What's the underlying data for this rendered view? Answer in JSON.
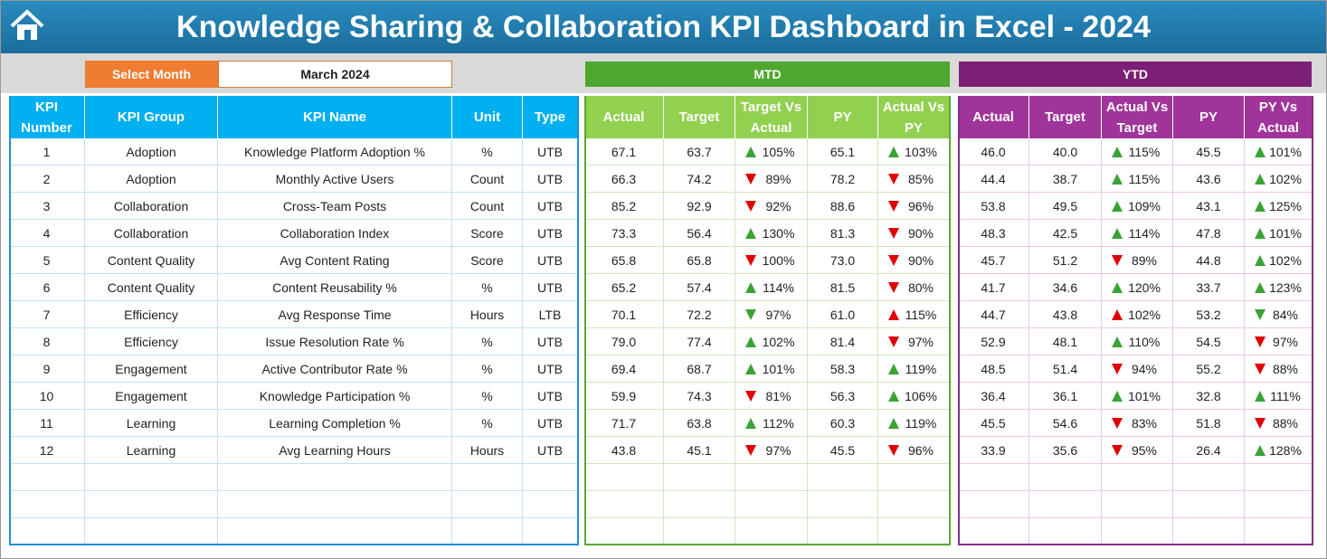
{
  "header": {
    "title": "Knowledge Sharing & Collaboration KPI Dashboard in Excel - 2024"
  },
  "selector": {
    "label": "Select Month",
    "value": "March 2024"
  },
  "sections": {
    "mtd": "MTD",
    "ytd": "YTD"
  },
  "columns": {
    "kpi": [
      "KPI Number",
      "KPI Group",
      "KPI Name",
      "Unit",
      "Type"
    ],
    "mtd": [
      "Actual",
      "Target",
      "Target Vs Actual",
      "PY",
      "Actual Vs PY"
    ],
    "ytd": [
      "Actual",
      "Target",
      "Actual Vs Target",
      "PY",
      "PY Vs Actual"
    ]
  },
  "rows": [
    {
      "kpi": [
        "1",
        "Adoption",
        "Knowledge Platform Adoption %",
        "%",
        "UTB"
      ],
      "mtd": [
        "67.1",
        "63.7",
        "105%",
        "65.1",
        "103%"
      ],
      "mtd_arrows": [
        "up-green",
        "up-green"
      ],
      "ytd": [
        "46.0",
        "40.0",
        "115%",
        "45.5",
        "101%"
      ],
      "ytd_arrows": [
        "up-green",
        "up-green"
      ]
    },
    {
      "kpi": [
        "2",
        "Adoption",
        "Monthly Active Users",
        "Count",
        "UTB"
      ],
      "mtd": [
        "66.3",
        "74.2",
        "89%",
        "78.2",
        "85%"
      ],
      "mtd_arrows": [
        "down-red",
        "down-red"
      ],
      "ytd": [
        "44.4",
        "38.7",
        "115%",
        "43.6",
        "102%"
      ],
      "ytd_arrows": [
        "up-green",
        "up-green"
      ]
    },
    {
      "kpi": [
        "3",
        "Collaboration",
        "Cross-Team Posts",
        "Count",
        "UTB"
      ],
      "mtd": [
        "85.2",
        "92.9",
        "92%",
        "88.6",
        "96%"
      ],
      "mtd_arrows": [
        "down-red",
        "down-red"
      ],
      "ytd": [
        "53.8",
        "49.5",
        "109%",
        "43.1",
        "125%"
      ],
      "ytd_arrows": [
        "up-green",
        "up-green"
      ]
    },
    {
      "kpi": [
        "4",
        "Collaboration",
        "Collaboration Index",
        "Score",
        "UTB"
      ],
      "mtd": [
        "73.3",
        "56.4",
        "130%",
        "81.3",
        "90%"
      ],
      "mtd_arrows": [
        "up-green",
        "down-red"
      ],
      "ytd": [
        "48.3",
        "42.5",
        "114%",
        "47.8",
        "101%"
      ],
      "ytd_arrows": [
        "up-green",
        "up-green"
      ]
    },
    {
      "kpi": [
        "5",
        "Content Quality",
        "Avg Content Rating",
        "Score",
        "UTB"
      ],
      "mtd": [
        "65.8",
        "65.8",
        "100%",
        "73.0",
        "90%"
      ],
      "mtd_arrows": [
        "down-red",
        "down-red"
      ],
      "ytd": [
        "45.7",
        "51.2",
        "89%",
        "44.8",
        "102%"
      ],
      "ytd_arrows": [
        "down-red",
        "up-green"
      ]
    },
    {
      "kpi": [
        "6",
        "Content Quality",
        "Content Reusability %",
        "%",
        "UTB"
      ],
      "mtd": [
        "65.2",
        "57.4",
        "114%",
        "81.5",
        "80%"
      ],
      "mtd_arrows": [
        "up-green",
        "down-red"
      ],
      "ytd": [
        "41.7",
        "34.6",
        "120%",
        "33.7",
        "123%"
      ],
      "ytd_arrows": [
        "up-green",
        "up-green"
      ]
    },
    {
      "kpi": [
        "7",
        "Efficiency",
        "Avg Response Time",
        "Hours",
        "LTB"
      ],
      "mtd": [
        "70.1",
        "72.2",
        "97%",
        "61.0",
        "115%"
      ],
      "mtd_arrows": [
        "down-green",
        "up-red"
      ],
      "ytd": [
        "44.7",
        "43.8",
        "102%",
        "53.2",
        "84%"
      ],
      "ytd_arrows": [
        "up-red",
        "down-green"
      ]
    },
    {
      "kpi": [
        "8",
        "Efficiency",
        "Issue Resolution Rate %",
        "%",
        "UTB"
      ],
      "mtd": [
        "79.0",
        "77.4",
        "102%",
        "81.4",
        "97%"
      ],
      "mtd_arrows": [
        "up-green",
        "down-red"
      ],
      "ytd": [
        "52.9",
        "48.1",
        "110%",
        "54.5",
        "97%"
      ],
      "ytd_arrows": [
        "up-green",
        "down-red"
      ]
    },
    {
      "kpi": [
        "9",
        "Engagement",
        "Active Contributor Rate %",
        "%",
        "UTB"
      ],
      "mtd": [
        "69.4",
        "68.7",
        "101%",
        "58.3",
        "119%"
      ],
      "mtd_arrows": [
        "up-green",
        "up-green"
      ],
      "ytd": [
        "48.5",
        "51.4",
        "94%",
        "55.2",
        "88%"
      ],
      "ytd_arrows": [
        "down-red",
        "down-red"
      ]
    },
    {
      "kpi": [
        "10",
        "Engagement",
        "Knowledge Participation %",
        "%",
        "UTB"
      ],
      "mtd": [
        "59.9",
        "74.3",
        "81%",
        "56.3",
        "106%"
      ],
      "mtd_arrows": [
        "down-red",
        "up-green"
      ],
      "ytd": [
        "36.4",
        "36.1",
        "101%",
        "32.8",
        "111%"
      ],
      "ytd_arrows": [
        "up-green",
        "up-green"
      ]
    },
    {
      "kpi": [
        "11",
        "Learning",
        "Learning Completion %",
        "%",
        "UTB"
      ],
      "mtd": [
        "71.7",
        "63.8",
        "112%",
        "60.3",
        "119%"
      ],
      "mtd_arrows": [
        "up-green",
        "up-green"
      ],
      "ytd": [
        "45.5",
        "54.6",
        "83%",
        "51.8",
        "88%"
      ],
      "ytd_arrows": [
        "down-red",
        "down-red"
      ]
    },
    {
      "kpi": [
        "12",
        "Learning",
        "Avg Learning Hours",
        "Hours",
        "UTB"
      ],
      "mtd": [
        "43.8",
        "45.1",
        "97%",
        "45.5",
        "96%"
      ],
      "mtd_arrows": [
        "down-red",
        "down-red"
      ],
      "ytd": [
        "33.9",
        "35.6",
        "95%",
        "26.4",
        "128%"
      ],
      "ytd_arrows": [
        "down-red",
        "up-green"
      ]
    }
  ]
}
